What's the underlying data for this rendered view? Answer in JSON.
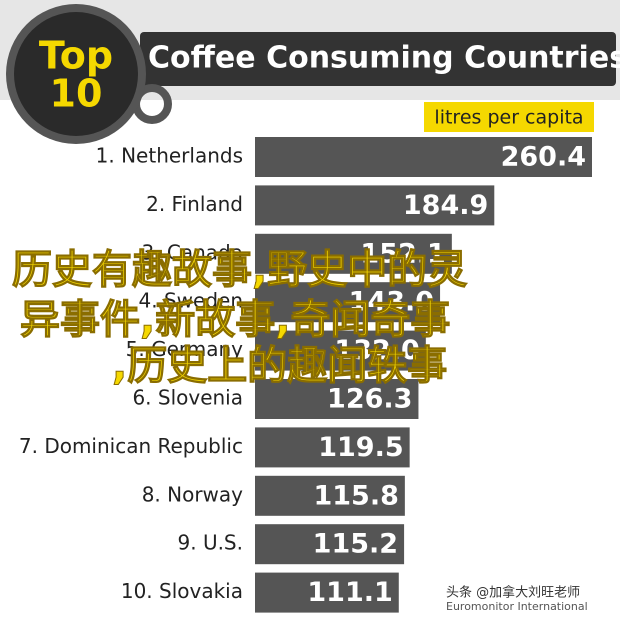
{
  "chart_data": {
    "type": "bar",
    "orientation": "horizontal",
    "badge": [
      "Top",
      "10"
    ],
    "title": "Coffee Consuming Countries",
    "unit": "litres per capita",
    "categories": [
      "1. Netherlands",
      "2. Finland",
      "3. Canada",
      "4. Sweden",
      "5. Germany",
      "6. Slovenia",
      "7. Dominican Republic",
      "8. Norway",
      "9. U.S.",
      "10. Slovakia"
    ],
    "values": [
      260.4,
      184.9,
      152.1,
      143.0,
      132.0,
      126.3,
      119.5,
      115.8,
      115.2,
      111.1
    ],
    "value_labels": [
      "260.4",
      "184.9",
      "152.1",
      "143.0",
      "132.0",
      "126.3",
      "119.5",
      "115.8",
      "115.2",
      "111.1"
    ],
    "color": "#555555",
    "source": "Euromonitor International"
  },
  "overlay": {
    "lines": [
      "历史有趣故事,野史中的灵",
      "异事件,新故事,奇闻奇事",
      ",历史上的趣闻轶事"
    ],
    "watermark": "头条 @加拿大刘旺老师"
  }
}
